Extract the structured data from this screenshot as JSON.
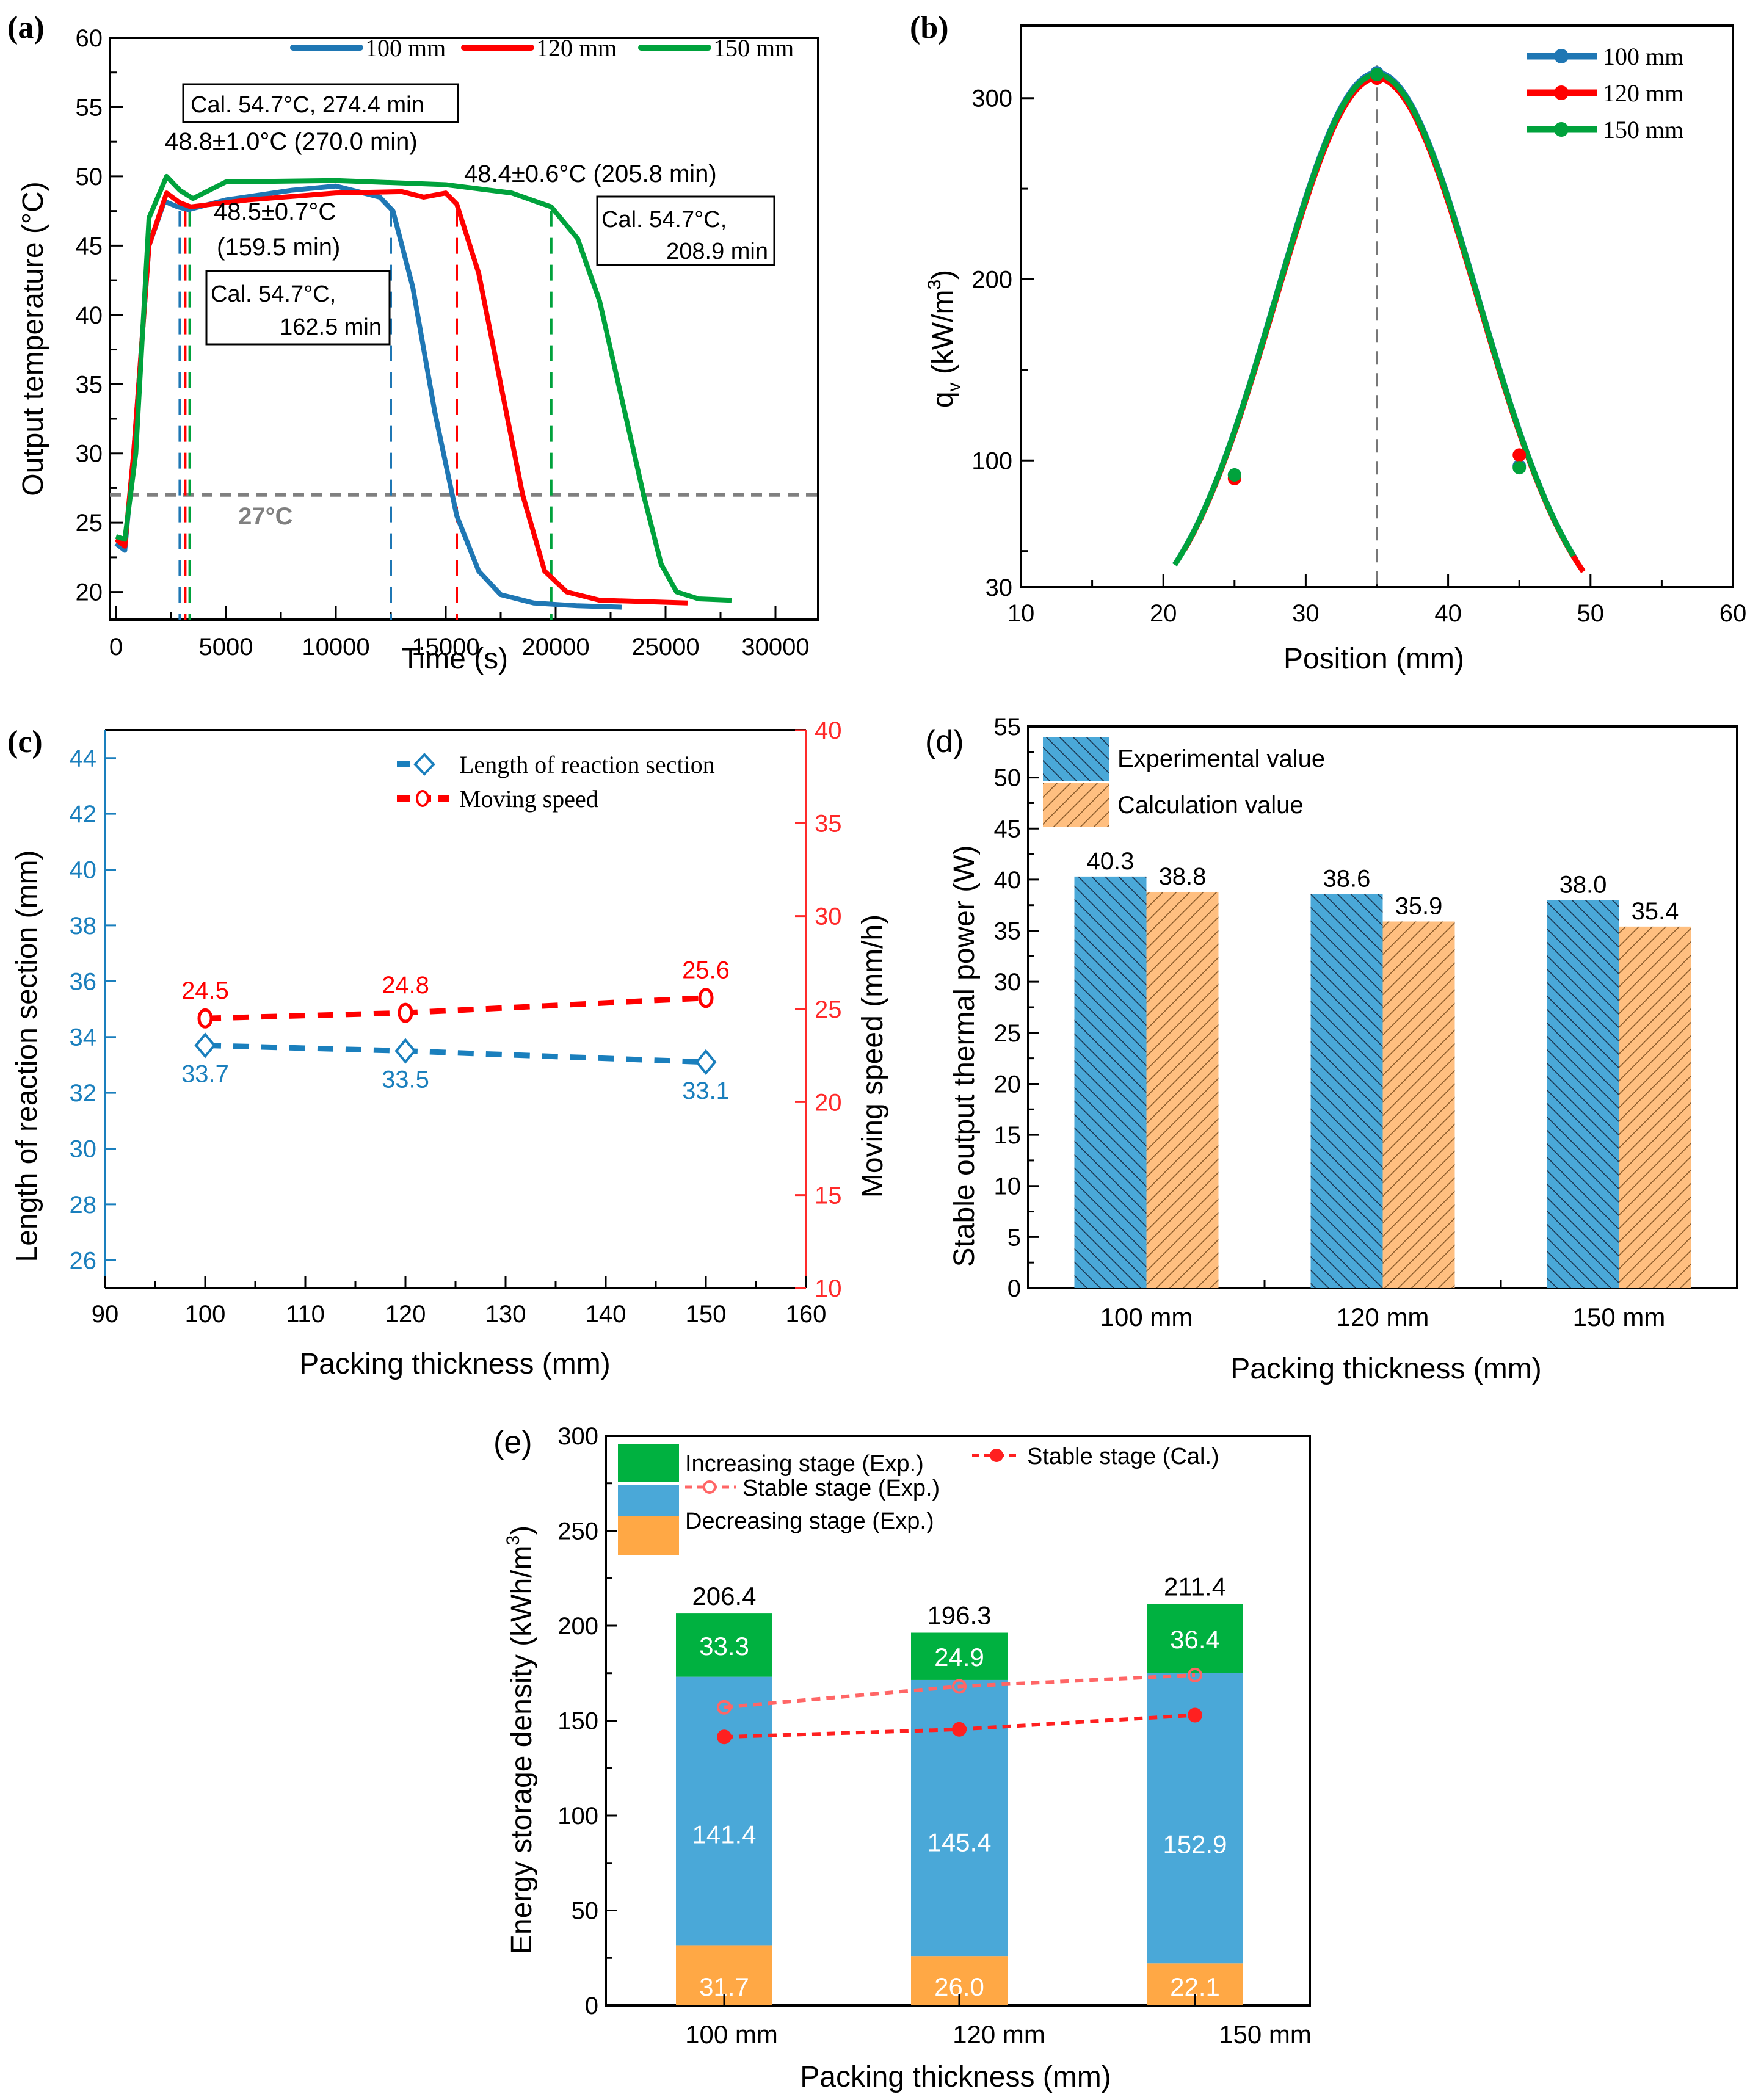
{
  "chart_data": [
    {
      "panel": "(a)",
      "type": "line",
      "xlabel": "Time (s)",
      "ylabel": "Output temperature (°C)",
      "xlim": [
        0,
        30000
      ],
      "ylim": [
        18,
        60
      ],
      "xticks": [
        0,
        5000,
        10000,
        15000,
        20000,
        25000,
        30000
      ],
      "yticks": [
        20,
        25,
        30,
        35,
        40,
        45,
        50,
        55,
        60
      ],
      "legend_position": "top-right",
      "series": [
        {
          "name": "100 mm",
          "color": "#1f77b4",
          "x": [
            0,
            400,
            800,
            1500,
            2200,
            2800,
            3300,
            5000,
            8000,
            10000,
            12000,
            12600,
            13500,
            14500,
            15500,
            16500,
            17500,
            19000,
            21000,
            23000
          ],
          "y": [
            23.5,
            23.0,
            30,
            45,
            48.2,
            47.8,
            47.6,
            48.3,
            49.0,
            49.3,
            48.5,
            47.5,
            42,
            33,
            25.5,
            21.5,
            19.8,
            19.2,
            19.0,
            18.9
          ]
        },
        {
          "name": "120 mm",
          "color": "#ff0000",
          "x": [
            0,
            400,
            800,
            1500,
            2300,
            2900,
            3400,
            6000,
            10000,
            13000,
            14000,
            15000,
            15500,
            16500,
            17500,
            18500,
            19500,
            20500,
            22000,
            26000
          ],
          "y": [
            23.8,
            23.3,
            30,
            45,
            48.8,
            48.1,
            47.8,
            48.3,
            48.8,
            48.9,
            48.5,
            48.8,
            48.0,
            43,
            35,
            27,
            21.5,
            20.0,
            19.4,
            19.2
          ]
        },
        {
          "name": "150 mm",
          "color": "#00a23c",
          "x": [
            0,
            400,
            900,
            1500,
            2300,
            2900,
            3500,
            5000,
            10000,
            15000,
            18000,
            19800,
            21000,
            22000,
            23000,
            24000,
            24800,
            25500,
            26500,
            28000
          ],
          "y": [
            24.0,
            23.8,
            30,
            47,
            50.0,
            49.0,
            48.4,
            49.6,
            49.7,
            49.4,
            48.8,
            47.8,
            45.5,
            41,
            34,
            27,
            22,
            20.0,
            19.5,
            19.4
          ]
        }
      ],
      "reference_lines": [
        {
          "type": "horizontal",
          "y": 27,
          "label": "27°C",
          "color": "#808080"
        },
        {
          "type": "vertical",
          "x": 2900,
          "color": "#1f77b4"
        },
        {
          "type": "vertical",
          "x": 3150,
          "color": "#ff0000"
        },
        {
          "type": "vertical",
          "x": 3350,
          "color": "#00a23c"
        },
        {
          "type": "vertical",
          "x": 12500,
          "color": "#1f77b4"
        },
        {
          "type": "vertical",
          "x": 15500,
          "color": "#ff0000"
        },
        {
          "type": "vertical",
          "x": 19800,
          "color": "#00a23c"
        }
      ],
      "annotations": [
        {
          "text": "Cal. 54.7°C, 274.4 min",
          "boxed": true
        },
        {
          "text": "48.8±1.0°C (270.0 min)",
          "boxed": false
        },
        {
          "text": "48.4±0.6°C (205.8 min)",
          "boxed": false
        },
        {
          "text": "48.5±0.7°C",
          "text2": "(159.5 min)",
          "boxed": false
        },
        {
          "text": "Cal. 54.7°C,",
          "text2": "162.5 min",
          "boxed": true
        },
        {
          "text": "Cal. 54.7°C,",
          "text2": "208.9 min",
          "boxed": true
        }
      ]
    },
    {
      "panel": "(b)",
      "type": "line",
      "xlabel": "Position (mm)",
      "ylabel": "qv (kW/m3)",
      "ylabel_main": "q",
      "ylabel_sub": "v",
      "ylabel_unit": " (kW/m",
      "ylabel_sup": "3",
      "ylabel_close": ")",
      "xlim": [
        10,
        60
      ],
      "ylim": [
        30,
        340
      ],
      "xticks": [
        10,
        20,
        30,
        40,
        50,
        60
      ],
      "yticks": [
        30,
        100,
        200,
        300
      ],
      "legend_position": "top-right",
      "peak_marker_x": 35,
      "series": [
        {
          "name": "100 mm",
          "color": "#1f77b4",
          "markers_x": [
            25,
            35,
            45
          ],
          "markers_y": [
            92,
            314,
            97
          ],
          "range": [
            20.8,
            49.2
          ]
        },
        {
          "name": "120 mm",
          "color": "#ff0000",
          "markers_x": [
            25,
            35,
            45
          ],
          "markers_y": [
            90,
            311,
            103
          ],
          "range": [
            21.5,
            49.6
          ]
        },
        {
          "name": "150 mm",
          "color": "#00a23c",
          "markers_x": [
            25,
            35,
            45
          ],
          "markers_y": [
            92,
            313,
            96
          ],
          "range": [
            20.8,
            49.0
          ]
        }
      ]
    },
    {
      "panel": "(c)",
      "type": "line",
      "xlabel": "Packing thickness (mm)",
      "ylabel_left": "Length of reaction section (mm)",
      "ylabel_right": "Moving speed (mm/h)",
      "xlim": [
        90,
        160
      ],
      "ylim_left": [
        25,
        45
      ],
      "ylim_right": [
        10,
        40
      ],
      "xticks": [
        90,
        100,
        110,
        120,
        130,
        140,
        150,
        160
      ],
      "yticks_left": [
        26,
        28,
        30,
        32,
        34,
        36,
        38,
        40,
        42,
        44
      ],
      "yticks_right": [
        10,
        15,
        20,
        25,
        30,
        35,
        40
      ],
      "legend_position": "top-right",
      "series": [
        {
          "name": "Length of reaction section",
          "axis": "left",
          "color": "#1a7fbd",
          "marker": "diamond-open",
          "x": [
            100,
            120,
            150
          ],
          "y": [
            33.7,
            33.5,
            33.1
          ],
          "labels": [
            "33.7",
            "33.5",
            "33.1"
          ]
        },
        {
          "name": "Moving speed",
          "axis": "right",
          "color": "#ff0000",
          "marker": "circle-open",
          "x": [
            100,
            120,
            150
          ],
          "y": [
            24.5,
            24.8,
            25.6
          ],
          "labels": [
            "24.5",
            "24.8",
            "25.6"
          ]
        }
      ]
    },
    {
      "panel": "(d)",
      "type": "bar",
      "xlabel": "Packing thickness (mm)",
      "ylabel": "Stable output thermal power (W)",
      "categories": [
        "100 mm",
        "120 mm",
        "150 mm"
      ],
      "ylim": [
        0,
        55
      ],
      "yticks": [
        0,
        5,
        10,
        15,
        20,
        25,
        30,
        35,
        40,
        45,
        50,
        55
      ],
      "legend_position": "top-left",
      "series": [
        {
          "name": "Experimental value",
          "color": "#4aa8d8",
          "hatch": "backslash",
          "values": [
            40.3,
            38.6,
            38.0
          ],
          "labels": [
            "40.3",
            "38.6",
            "38.0"
          ]
        },
        {
          "name": "Calculation value",
          "color": "#ffbf80",
          "hatch": "slash",
          "values": [
            38.8,
            35.9,
            35.4
          ],
          "labels": [
            "38.8",
            "35.9",
            "35.4"
          ]
        }
      ]
    },
    {
      "panel": "(e)",
      "type": "bar",
      "stacked": true,
      "xlabel": "Packing thickness (mm)",
      "ylabel": "Energy storage density (kWh/m3)",
      "ylabel_main": "Energy storage density (kWh/m",
      "ylabel_sup": "3",
      "ylabel_close": ")",
      "categories": [
        "100 mm",
        "120 mm",
        "150 mm"
      ],
      "ylim": [
        0,
        300
      ],
      "yticks": [
        0,
        50,
        100,
        150,
        200,
        250,
        300
      ],
      "legend_position": "top-left",
      "totals": [
        "206.4",
        "196.3",
        "211.4"
      ],
      "series": [
        {
          "name": "Decreasing stage (Exp.)",
          "color": "#ffa845",
          "values": [
            31.7,
            26.0,
            22.1
          ],
          "labels": [
            "31.7",
            "26.0",
            "22.1"
          ]
        },
        {
          "name": "Stable stage (Exp.) bars",
          "color": "#4aa8d8",
          "values": [
            141.4,
            145.4,
            152.9
          ],
          "labels": [
            "141.4",
            "145.4",
            "152.9"
          ]
        },
        {
          "name": "Increasing stage (Exp.)",
          "color": "#00b140",
          "values": [
            33.3,
            24.9,
            36.4
          ],
          "labels": [
            "33.3",
            "24.9",
            "36.4"
          ]
        }
      ],
      "line_series": [
        {
          "name": "Stable stage (Exp.)",
          "color": "#ff6666",
          "marker": "circle-open",
          "values": [
            157,
            168,
            174
          ]
        },
        {
          "name": "Stable stage (Cal.)",
          "color": "#ff2020",
          "marker": "circle-filled",
          "values": [
            141.4,
            145.4,
            152.9
          ]
        }
      ],
      "legend_labels": [
        "Increasing stage (Exp.)",
        "Stable stage (Cal.)",
        "Stable stage (Exp.)",
        "Decreasing stage (Exp.)"
      ]
    }
  ]
}
